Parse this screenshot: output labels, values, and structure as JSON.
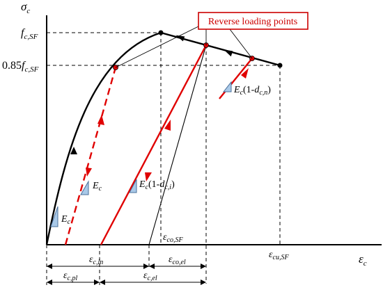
{
  "axes": {
    "y_label": "σ",
    "y_label_sub": "c",
    "x_label": "ε",
    "x_label_sub": "c"
  },
  "y_ticks": {
    "peak": {
      "main": "f",
      "sub": "c,SF"
    },
    "residual": {
      "prefix": "0.85",
      "main": "f",
      "sub": "c,SF"
    }
  },
  "x_ticks": {
    "peak_strain": {
      "main": "ε",
      "sub": "co,SF"
    },
    "ultimate_strain": {
      "main": "ε",
      "sub": "cu,SF"
    }
  },
  "callout": "Reverse loading points",
  "slopes": {
    "initial": {
      "main": "E",
      "sub": "c"
    },
    "unload_dashed": {
      "main": "E",
      "sub": "c"
    },
    "degraded_i": {
      "main": "E",
      "sub": "c",
      "mid": "(1-",
      "sub2": "c,i",
      "close": ")",
      "d": "d"
    },
    "degraded_n": {
      "main": "E",
      "sub": "c",
      "mid": "(1-",
      "sub2": "c,n",
      "close": ")",
      "d": "d"
    }
  },
  "dimensions": {
    "inelastic": {
      "main": "ε",
      "sub": "c,in"
    },
    "elastic_co": {
      "main": "ε",
      "sub": "co,el"
    },
    "plastic": {
      "main": "ε",
      "sub": "c,pl"
    },
    "elastic_c": {
      "main": "ε",
      "sub": "c,el"
    }
  },
  "colors": {
    "curve": "#000000",
    "reload": "#e00000",
    "triangle_fill": "#a9c9e8",
    "triangle_stroke": "#4a6f9a"
  }
}
